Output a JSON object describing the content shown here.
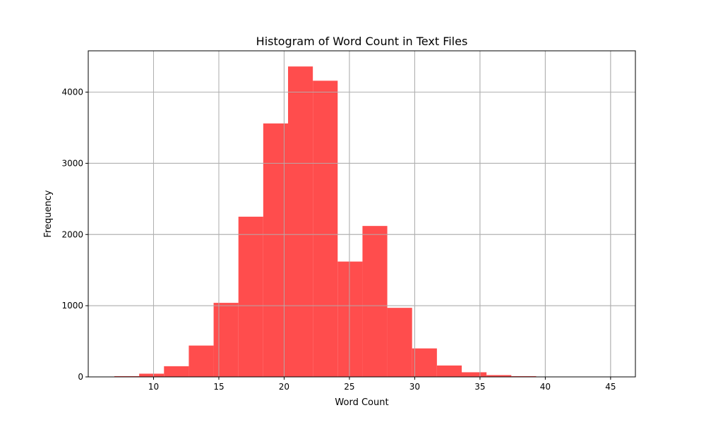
{
  "chart_data": {
    "type": "bar",
    "title": "Histogram of Word Count in Text Files",
    "xlabel": "Word Count",
    "ylabel": "Frequency",
    "xlim": [
      5.0,
      46.9
    ],
    "ylim": [
      0,
      4580
    ],
    "grid": true,
    "bar_color": "#ff4d4d",
    "grid_color": "#b0b0b0",
    "x_ticks": [
      10,
      15,
      20,
      25,
      30,
      35,
      40,
      45
    ],
    "y_ticks": [
      0,
      1000,
      2000,
      3000,
      4000
    ],
    "bin_edges": [
      7.0,
      8.9,
      10.8,
      12.7,
      14.6,
      16.5,
      18.4,
      20.3,
      22.2,
      24.1,
      26.0,
      27.9,
      29.8,
      31.7,
      33.6,
      35.5,
      37.4,
      39.3,
      41.2,
      43.1,
      45.0
    ],
    "values": [
      10,
      45,
      150,
      440,
      1040,
      2250,
      3560,
      4360,
      4160,
      1620,
      2120,
      970,
      400,
      160,
      65,
      25,
      10,
      3,
      2,
      1
    ]
  }
}
